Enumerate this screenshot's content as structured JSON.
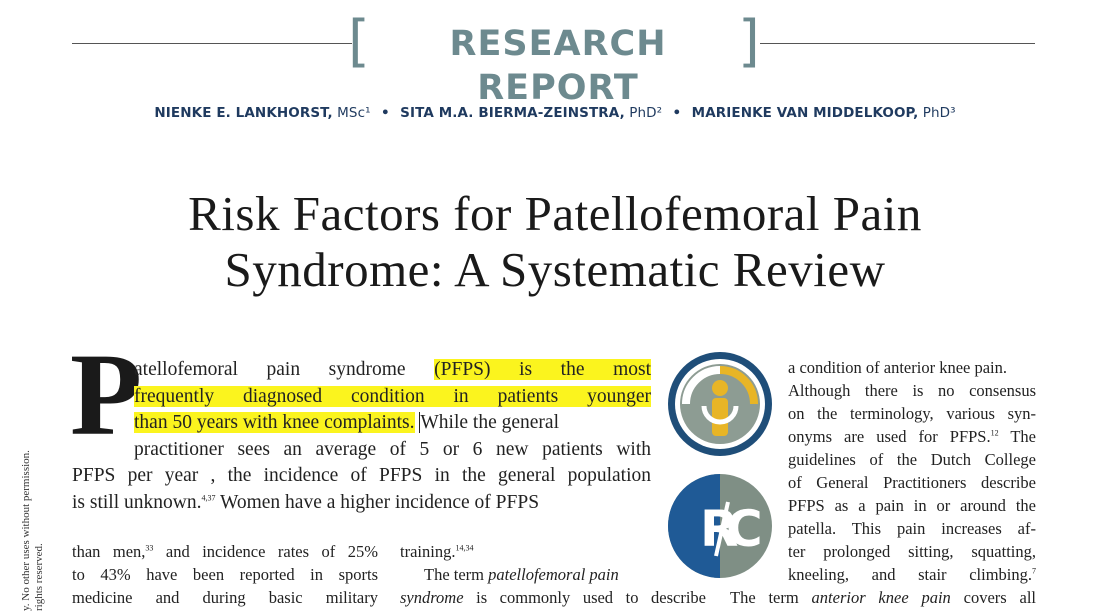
{
  "header": {
    "label": "RESEARCH REPORT",
    "authors": [
      {
        "name": "NIENKE E. LANKHORST,",
        "degree": " MSc¹"
      },
      {
        "name": "SITA M.A. BIERMA-ZEINSTRA,",
        "degree": " PhD²"
      },
      {
        "name": "MARIENKE VAN MIDDELKOOP,",
        "degree": " PhD³"
      }
    ],
    "separator": "•"
  },
  "title": {
    "line1": "Risk Factors for Patellofemoral Pain",
    "line2": "Syndrome: A Systematic Review"
  },
  "body": {
    "drop_cap": "P",
    "intro": [
      {
        "pre": "atellofemoral pain syndrome ",
        "hl": "(PFPS) is the most"
      },
      {
        "hl": "frequently diagnosed condition in patients younger"
      },
      {
        "hl": "than 50 years with knee complaints.",
        "post": "While the general"
      },
      {
        "text": "practitioner sees an average of 5 or 6 new patients with"
      },
      {
        "text": "PFPS per year , the incidence of PFPS in the general population"
      },
      {
        "text": "is still unknown.",
        "sup": "4,37",
        "post": " Women have a higher incidence of PFPS"
      }
    ],
    "left_col": [
      {
        "text": "than men,",
        "sup": "33",
        "post": " and incidence rates of 25%"
      },
      {
        "text": "to 43% have been reported in sports"
      },
      {
        "text": "medicine and during basic military"
      }
    ],
    "middle_col": [
      {
        "text": "training.",
        "sup": "14,34"
      },
      {
        "text": "The term ",
        "em": "patellofemoral pain"
      },
      {
        "em": "syndrome",
        "post": " is commonly used to describe"
      }
    ],
    "right_col": [
      {
        "text": "a condition of anterior knee pain."
      },
      {
        "text": "Although there is no consensus"
      },
      {
        "text": "on the terminology, various syn-"
      },
      {
        "text": "onyms are used for PFPS.",
        "sup": "12",
        "post": " The"
      },
      {
        "text": "guidelines of the Dutch College"
      },
      {
        "text": "of General Practitioners describe"
      },
      {
        "text": "PFPS as a pain in or around the"
      },
      {
        "text": "patella. This pain increases af-"
      },
      {
        "text": "ter prolonged sitting, squatting,"
      },
      {
        "text": "kneeling, and stair climbing.",
        "sup": "7"
      },
      {
        "text": "The term ",
        "em": "anterior knee pain",
        "post": " covers all"
      }
    ]
  },
  "logos": {
    "top": {
      "name": "research-logo",
      "ring_color": "#1f4e79",
      "accent": "#e8b526",
      "bg": "#8d9c93"
    },
    "bottom": {
      "text_r": "R",
      "text_c": "C",
      "blue": "#1f5a96",
      "grey": "#7f8f85"
    }
  },
  "margin_note": {
    "line1": "y. No other uses without permission.",
    "line2": "rights reserved."
  }
}
